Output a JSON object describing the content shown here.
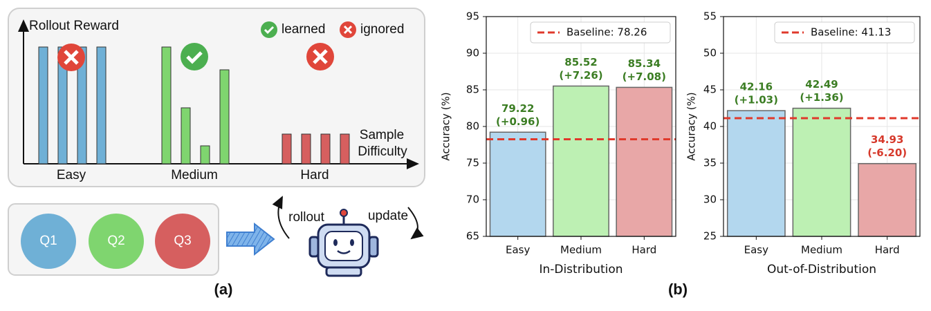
{
  "diagram": {
    "y_axis_label": "Rollout Reward",
    "x_axis_label_1": "Sample",
    "x_axis_label_2": "Difficulty",
    "legend": [
      "learned",
      "ignored"
    ],
    "groups": [
      "Easy",
      "Medium",
      "Hard"
    ],
    "questions": [
      "Q1",
      "Q2",
      "Q3"
    ],
    "rollout": "rollout",
    "update": "update",
    "caption": "(a)"
  },
  "caption_b": "(b)",
  "chart_data": [
    {
      "type": "bar",
      "xlabel": "In-Distribution",
      "ylabel": "Accuracy (%)",
      "categories": [
        "Easy",
        "Medium",
        "Hard"
      ],
      "values": [
        79.22,
        85.52,
        85.34
      ],
      "delta_labels": [
        "(+0.96)",
        "(+7.26)",
        "(+7.08)"
      ],
      "colors": [
        "#b3d7ee",
        "#bdf0b3",
        "#e8a7a7"
      ],
      "value_label_colors": [
        "#3b7d23",
        "#3b7d23",
        "#3b7d23"
      ],
      "baseline": {
        "label": "Baseline: 78.26",
        "value": 78.26,
        "color": "#e0392b"
      },
      "ylim": [
        65,
        95
      ],
      "yticks": [
        65,
        70,
        75,
        80,
        85,
        90,
        95
      ],
      "grid": true,
      "legend_position": "upper right"
    },
    {
      "type": "bar",
      "xlabel": "Out-of-Distribution",
      "ylabel": "Accuracy (%)",
      "categories": [
        "Easy",
        "Medium",
        "Hard"
      ],
      "values": [
        42.16,
        42.49,
        34.93
      ],
      "delta_labels": [
        "(+1.03)",
        "(+1.36)",
        "(-6.20)"
      ],
      "colors": [
        "#b3d7ee",
        "#bdf0b3",
        "#e8a7a7"
      ],
      "value_label_colors": [
        "#3b7d23",
        "#3b7d23",
        "#d6392b"
      ],
      "baseline": {
        "label": "Baseline: 41.13",
        "value": 41.13,
        "color": "#e0392b"
      },
      "ylim": [
        25,
        55
      ],
      "yticks": [
        25,
        30,
        35,
        40,
        45,
        50,
        55
      ],
      "grid": true,
      "legend_position": "upper right"
    }
  ]
}
